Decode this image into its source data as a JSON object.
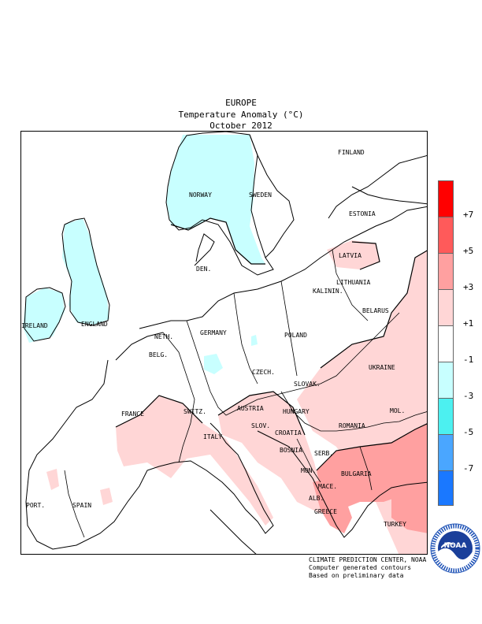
{
  "header": {
    "region": "EUROPE",
    "variable": "Temperature Anomaly (°C)",
    "period": "October 2012"
  },
  "legend": {
    "ticks": [
      "+7",
      "+5",
      "+3",
      "+1",
      "-1",
      "-3",
      "-5",
      "-7"
    ],
    "colors": [
      "#ff0000",
      "#ff5a5a",
      "#ffa0a0",
      "#ffd6d6",
      "#ffffff",
      "#c8ffff",
      "#4cf0f0",
      "#4aa6ff",
      "#1a78ff"
    ]
  },
  "map": {
    "country_labels": [
      "FINLAND",
      "NORWAY",
      "SWEDEN",
      "ESTONIA",
      "LATVIA",
      "DEN.",
      "LITHUANIA",
      "KALININ.",
      "IRELAND",
      "ENGLAND",
      "BELARUS",
      "NETH.",
      "GERMANY",
      "POLAND",
      "BELG.",
      "CZECH.",
      "UKRAINE",
      "SLOVAK.",
      "FRANCE",
      "SWITZ.",
      "AUSTRIA",
      "HUNGARY",
      "MOL.",
      "ROMANIA",
      "SLOV.",
      "CROATIA",
      "ITALY",
      "BOSNIA",
      "SERB.",
      "BULGARIA",
      "MON.",
      "PORT.",
      "SPAIN",
      "MACE.",
      "ALB.",
      "GREECE",
      "TURKEY"
    ]
  },
  "credits": {
    "line1": "CLIMATE PREDICTION CENTER, NOAA",
    "line2": "Computer generated contours",
    "line3": "Based on preliminary data"
  },
  "logo": {
    "text": "NOAA",
    "ring_text": "NATIONAL OCEANIC AND ATMOSPHERIC ADMINISTRATION · U.S. DEPARTMENT OF COMMERCE"
  }
}
